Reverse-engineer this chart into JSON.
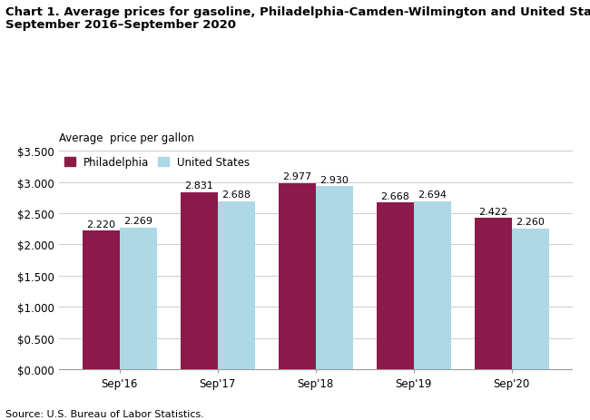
{
  "title_line1": "Chart 1. Average prices for gasoline, Philadelphia-Camden-Wilmington and United States,",
  "title_line2": "September 2016–September 2020",
  "ylabel": "Average  price per gallon",
  "source": "Source: U.S. Bureau of Labor Statistics.",
  "categories": [
    "Sep'16",
    "Sep'17",
    "Sep'18",
    "Sep'19",
    "Sep'20"
  ],
  "philadelphia": [
    2.22,
    2.831,
    2.977,
    2.668,
    2.422
  ],
  "us": [
    2.269,
    2.688,
    2.93,
    2.694,
    2.26
  ],
  "philly_color": "#8B1A4A",
  "us_color": "#ADD8E6",
  "ylim": [
    0,
    3.5
  ],
  "yticks": [
    0.0,
    0.5,
    1.0,
    1.5,
    2.0,
    2.5,
    3.0,
    3.5
  ],
  "ytick_labels": [
    "$0.000",
    "$0.500",
    "$1.000",
    "$1.500",
    "$2.000",
    "$2.500",
    "$3.000",
    "$3.500"
  ],
  "bar_width": 0.38,
  "legend_philly": "Philadelphia",
  "legend_us": "United States",
  "background_color": "#ffffff",
  "grid_color": "#cccccc",
  "title_fontsize": 9.5,
  "axis_label_fontsize": 8.5,
  "label_fontsize": 8.0,
  "tick_fontsize": 8.5,
  "source_fontsize": 8.0,
  "legend_fontsize": 8.5
}
